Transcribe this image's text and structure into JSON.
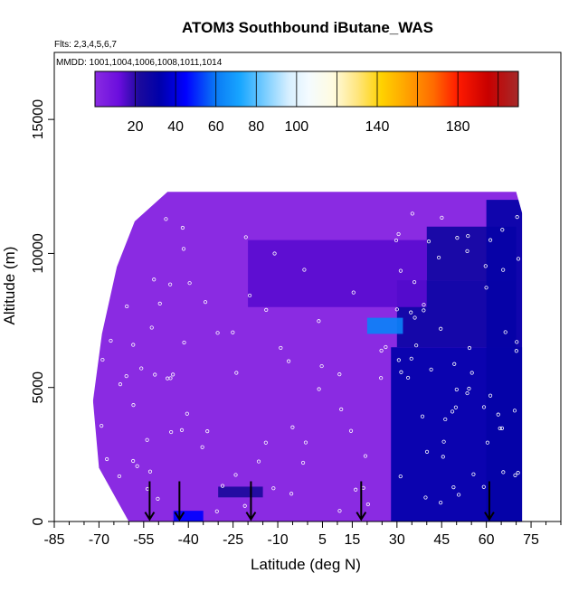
{
  "chart_data": {
    "type": "heatmap",
    "title": "ATOM3 Southbound iButane_WAS",
    "subtitle_flights": "Flts: 2,3,4,5,6,7",
    "subtitle_dates": "MMDD: 1001,1004,1006,1008,1011,1014",
    "xlabel": "Latitude (deg N)",
    "ylabel": "Altitude (m)",
    "xlim": [
      -85,
      85
    ],
    "ylim": [
      0,
      17500
    ],
    "xticks": [
      -85,
      -70,
      -55,
      -40,
      -25,
      -10,
      5,
      15,
      30,
      45,
      60,
      75
    ],
    "yticks": [
      0,
      5000,
      10000,
      15000
    ],
    "grid": false,
    "colorbar": {
      "position": "top",
      "range": [
        0,
        210
      ],
      "ticks": [
        20,
        40,
        60,
        80,
        100,
        140,
        180
      ],
      "stops": [
        {
          "v": 0,
          "c": "#8a2be2"
        },
        {
          "v": 12,
          "c": "#6a0ddd"
        },
        {
          "v": 22,
          "c": "#1b0a9c"
        },
        {
          "v": 32,
          "c": "#0000aa"
        },
        {
          "v": 45,
          "c": "#0000ff"
        },
        {
          "v": 60,
          "c": "#0a7af5"
        },
        {
          "v": 72,
          "c": "#18a6ff"
        },
        {
          "v": 85,
          "c": "#7fcfff"
        },
        {
          "v": 96,
          "c": "#d6efff"
        },
        {
          "v": 106,
          "c": "#f4fbff"
        },
        {
          "v": 118,
          "c": "#fffbe0"
        },
        {
          "v": 130,
          "c": "#ffe680"
        },
        {
          "v": 142,
          "c": "#ffd200"
        },
        {
          "v": 154,
          "c": "#ffa500"
        },
        {
          "v": 168,
          "c": "#ff6a00"
        },
        {
          "v": 180,
          "c": "#ff1a00"
        },
        {
          "v": 195,
          "c": "#c80000"
        },
        {
          "v": 210,
          "c": "#a52a2a"
        }
      ]
    },
    "field": {
      "lat_range": [
        -72,
        72
      ],
      "alt_range": [
        0,
        12500
      ],
      "background_color": "#8a2be2",
      "regions": [
        {
          "lat": [
            28,
            72
          ],
          "alt": [
            0,
            6500
          ],
          "value": 32
        },
        {
          "lat": [
            30,
            70
          ],
          "alt": [
            6500,
            9000
          ],
          "value": 28
        },
        {
          "lat": [
            40,
            70
          ],
          "alt": [
            9000,
            11000
          ],
          "value": 26
        },
        {
          "lat": [
            -20,
            40
          ],
          "alt": [
            8000,
            10500
          ],
          "value": 14
        },
        {
          "lat": [
            20,
            32
          ],
          "alt": [
            7000,
            7600
          ],
          "value": 62
        },
        {
          "lat": [
            -30,
            -15
          ],
          "alt": [
            900,
            1300
          ],
          "value": 22
        },
        {
          "lat": [
            -45,
            -35
          ],
          "alt": [
            0,
            400
          ],
          "value": 45
        },
        {
          "lat": [
            60,
            72
          ],
          "alt": [
            0,
            12000
          ],
          "value": 30
        }
      ]
    },
    "sample_points_latitudes": [
      -73,
      -70,
      -68,
      -66,
      -63,
      -60,
      -58,
      -55,
      -52,
      -50,
      -47,
      -45,
      -43,
      -40,
      -35,
      -30,
      -25,
      -20,
      -15,
      -10,
      -5,
      0,
      5,
      10,
      15,
      20,
      25,
      30,
      35,
      40,
      45,
      50,
      55,
      60,
      65,
      70
    ],
    "arrows": {
      "direction": "down",
      "latitudes": [
        -53,
        -43,
        -19,
        18,
        61
      ]
    }
  }
}
